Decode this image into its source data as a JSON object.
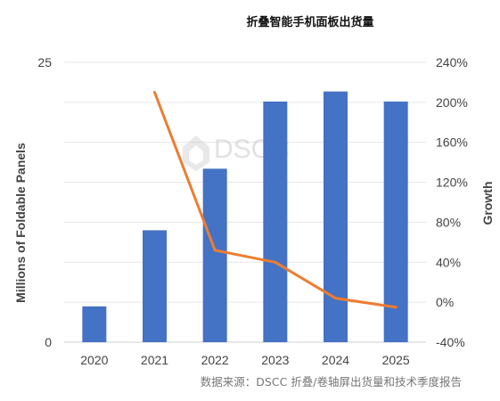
{
  "chart_data": {
    "type": "bar",
    "title": "折叠智能手机面板出货量",
    "categories": [
      "2020",
      "2021",
      "2022",
      "2023",
      "2024",
      "2025"
    ],
    "series": [
      {
        "type": "bar",
        "axis": "left",
        "color": "#4472C4",
        "values": [
          3.2,
          10,
          15.5,
          21.5,
          22.4,
          21.5
        ]
      },
      {
        "type": "line",
        "axis": "right",
        "color": "#ED7D31",
        "values": [
          null,
          210,
          52,
          40,
          4,
          -5
        ]
      }
    ],
    "ylabel": "Millions of Foldable Panels",
    "ylim": [
      0,
      25
    ],
    "y_ticks": [
      "0",
      "25"
    ],
    "y2label": "Growth",
    "y2lim": [
      -40,
      240
    ],
    "y2_ticks": [
      "-40%",
      "0%",
      "40%",
      "80%",
      "120%",
      "160%",
      "200%",
      "240%"
    ],
    "grid": true,
    "legend": "none",
    "source": "数据来源：DSCC 折叠/卷轴屏出货量和技术季度报告",
    "watermark": "DSCC"
  }
}
